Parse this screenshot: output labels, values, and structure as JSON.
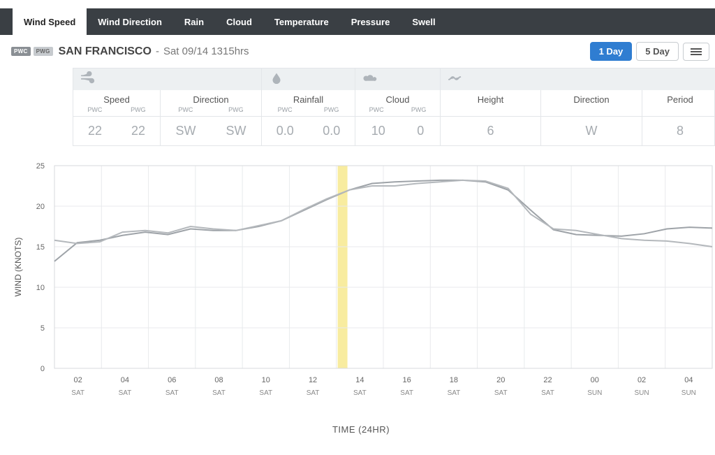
{
  "tabs": {
    "items": [
      "Wind Speed",
      "Wind Direction",
      "Rain",
      "Cloud",
      "Temperature",
      "Pressure",
      "Swell"
    ],
    "active_index": 0,
    "active_bg": "#ffffff",
    "inactive_bg": "#3a3f44"
  },
  "header": {
    "badge1": "PWC",
    "badge2": "PWG",
    "location": "SAN FRANCISCO",
    "separator": " - ",
    "datetime": "Sat 09/14 1315hrs"
  },
  "range_buttons": {
    "one_day": "1 Day",
    "five_day": "5 Day",
    "active": "one_day"
  },
  "data_panel": {
    "groups": [
      {
        "icon": "wind",
        "columns": [
          {
            "label": "Speed",
            "subs": [
              "PWC",
              "PWG"
            ],
            "values": [
              "22",
              "22"
            ]
          },
          {
            "label": "Direction",
            "subs": [
              "PWC",
              "PWG"
            ],
            "values": [
              "SW",
              "SW"
            ]
          }
        ]
      },
      {
        "icon": "rain",
        "columns": [
          {
            "label": "Rainfall",
            "subs": [
              "PWC",
              "PWG"
            ],
            "values": [
              "0.0",
              "0.0"
            ]
          }
        ]
      },
      {
        "icon": "cloud",
        "columns": [
          {
            "label": "Cloud",
            "subs": [
              "PWC",
              "PWG"
            ],
            "values": [
              "10",
              "0"
            ]
          }
        ]
      },
      {
        "icon": "swell",
        "columns": [
          {
            "label": "Height",
            "subs": [],
            "values": [
              "6"
            ]
          },
          {
            "label": "Direction",
            "subs": [],
            "values": [
              "W"
            ]
          },
          {
            "label": "Period",
            "subs": [],
            "values": [
              "8"
            ]
          }
        ]
      }
    ]
  },
  "chart": {
    "type": "line",
    "y_axis_label": "WIND (KNOTS)",
    "x_axis_label": "TIME (24HR)",
    "ylim": [
      0,
      25
    ],
    "ytick_step": 5,
    "plot_bg": "#ffffff",
    "grid_color": "#e8eaec",
    "highlight_color": "#f7e98e",
    "highlight_x_index": 6.5,
    "highlight_width_hours": 0.5,
    "x_ticks": [
      {
        "h": "02",
        "d": "SAT"
      },
      {
        "h": "04",
        "d": "SAT"
      },
      {
        "h": "06",
        "d": "SAT"
      },
      {
        "h": "08",
        "d": "SAT"
      },
      {
        "h": "10",
        "d": "SAT"
      },
      {
        "h": "12",
        "d": "SAT"
      },
      {
        "h": "14",
        "d": "SAT"
      },
      {
        "h": "16",
        "d": "SAT"
      },
      {
        "h": "18",
        "d": "SAT"
      },
      {
        "h": "20",
        "d": "SAT"
      },
      {
        "h": "22",
        "d": "SAT"
      },
      {
        "h": "00",
        "d": "SUN"
      },
      {
        "h": "02",
        "d": "SUN"
      },
      {
        "h": "04",
        "d": "SUN"
      }
    ],
    "series": [
      {
        "name": "PWC",
        "color": "#9ea3a8",
        "values": [
          13.2,
          15.5,
          15.8,
          16.4,
          16.8,
          16.5,
          17.2,
          17.0,
          17.0,
          17.5,
          18.2,
          19.5,
          20.8,
          22.0,
          22.8,
          23.0,
          23.1,
          23.2,
          23.2,
          23.0,
          22.0,
          19.5,
          17.1,
          16.5,
          16.4,
          16.3,
          16.6,
          17.2,
          17.4,
          17.3
        ]
      },
      {
        "name": "PWG",
        "color": "#b4b8bc",
        "values": [
          15.8,
          15.4,
          15.6,
          16.8,
          17.0,
          16.7,
          17.5,
          17.2,
          17.0,
          17.6,
          18.2,
          19.6,
          20.9,
          22.0,
          22.5,
          22.5,
          22.8,
          23.0,
          23.2,
          23.1,
          22.2,
          19.0,
          17.2,
          17.0,
          16.5,
          16.0,
          15.8,
          15.7,
          15.4,
          15.0
        ]
      }
    ],
    "axis_font_size": 11,
    "line_width": 2
  }
}
